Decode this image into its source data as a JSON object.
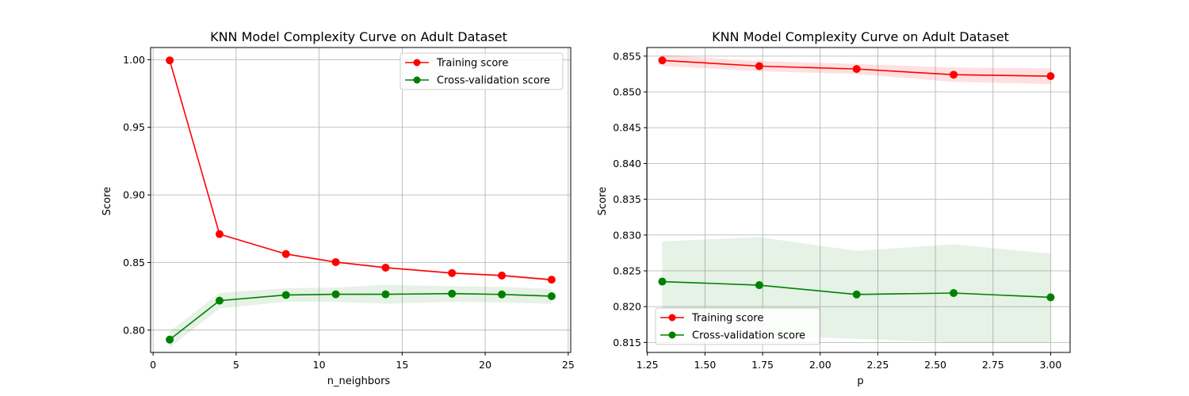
{
  "chart_data": [
    {
      "type": "line",
      "title": "KNN Model Complexity Curve on Adult Dataset",
      "xlabel": "n_neighbors",
      "ylabel": "Score",
      "xlim": [
        -0.15,
        25.15
      ],
      "ylim": [
        0.7835,
        1.009
      ],
      "xticks": [
        0,
        5,
        10,
        15,
        20,
        25
      ],
      "xtick_labels": [
        "0",
        "5",
        "10",
        "15",
        "20",
        "25"
      ],
      "yticks": [
        0.8,
        0.85,
        0.9,
        0.95,
        1.0
      ],
      "ytick_labels": [
        "0.80",
        "0.85",
        "0.90",
        "0.95",
        "1.00"
      ],
      "grid": true,
      "legend_position": "top-right",
      "x": [
        1,
        4,
        8,
        11,
        14,
        18,
        21,
        24
      ],
      "series": [
        {
          "name": "Training score",
          "color": "#ff0000",
          "values": [
            0.9995,
            0.871,
            0.8563,
            0.8503,
            0.8462,
            0.8422,
            0.8404,
            0.8373
          ],
          "band_lower": [
            0.9995,
            0.8705,
            0.8558,
            0.8497,
            0.8455,
            0.8415,
            0.8396,
            0.8362
          ],
          "band_upper": [
            0.9995,
            0.8715,
            0.8568,
            0.8509,
            0.8469,
            0.8429,
            0.8412,
            0.8384
          ]
        },
        {
          "name": "Cross-validation score",
          "color": "#008000",
          "values": [
            0.793,
            0.8218,
            0.826,
            0.8265,
            0.8265,
            0.827,
            0.8264,
            0.8251
          ],
          "band_lower": [
            0.787,
            0.816,
            0.821,
            0.821,
            0.8195,
            0.821,
            0.8205,
            0.8195
          ],
          "band_upper": [
            0.799,
            0.8275,
            0.831,
            0.8315,
            0.8335,
            0.8325,
            0.832,
            0.8305
          ]
        }
      ]
    },
    {
      "type": "line",
      "title": "KNN Model Complexity Curve on Adult Dataset",
      "xlabel": "p",
      "ylabel": "Score",
      "xlim": [
        1.2475,
        3.0845
      ],
      "ylim": [
        0.8136,
        0.8562
      ],
      "xticks": [
        1.25,
        1.5,
        1.75,
        2.0,
        2.25,
        2.5,
        2.75,
        3.0
      ],
      "xtick_labels": [
        "1.25",
        "1.50",
        "1.75",
        "2.00",
        "2.25",
        "2.50",
        "2.75",
        "3.00"
      ],
      "yticks": [
        0.815,
        0.82,
        0.825,
        0.83,
        0.835,
        0.84,
        0.845,
        0.85,
        0.855
      ],
      "ytick_labels": [
        "0.815",
        "0.820",
        "0.825",
        "0.830",
        "0.835",
        "0.840",
        "0.845",
        "0.850",
        "0.855"
      ],
      "grid": true,
      "legend_position": "bottom-left",
      "x": [
        1.3145,
        1.7355,
        2.158,
        2.579,
        3.0
      ],
      "series": [
        {
          "name": "Training score",
          "color": "#ff0000",
          "values": [
            0.8544,
            0.8536,
            0.8532,
            0.8524,
            0.8522
          ],
          "band_lower": [
            0.8536,
            0.8529,
            0.8525,
            0.8514,
            0.8511
          ],
          "band_upper": [
            0.8552,
            0.8543,
            0.8539,
            0.8534,
            0.8533
          ]
        },
        {
          "name": "Cross-validation score",
          "color": "#008000",
          "values": [
            0.8235,
            0.823,
            0.8217,
            0.8219,
            0.8213
          ],
          "band_lower": [
            0.818,
            0.816,
            0.8155,
            0.815,
            0.815
          ],
          "band_upper": [
            0.8291,
            0.8297,
            0.8278,
            0.8287,
            0.8274
          ]
        }
      ]
    }
  ]
}
